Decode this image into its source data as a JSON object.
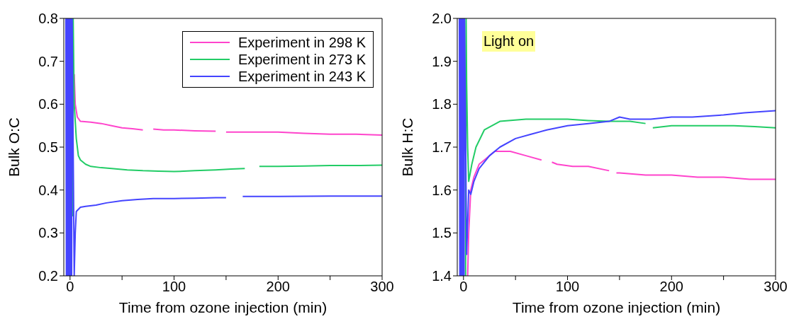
{
  "chart_data": [
    {
      "type": "line",
      "ylabel": "Bulk O:C",
      "xlabel": "Time from ozone injection (min)",
      "xlim": [
        -6,
        300
      ],
      "xticks": [
        0,
        {
          "value": 50,
          "label": null
        },
        100,
        {
          "value": 150,
          "label": null
        },
        200,
        {
          "value": 250,
          "label": null
        },
        300
      ],
      "ylim": [
        0.2,
        0.8
      ],
      "yticks": [
        0.2,
        0.3,
        0.4,
        0.5,
        0.6,
        0.7,
        0.8
      ],
      "legend": "top right",
      "marker": "none",
      "line_style": "solid",
      "series": [
        {
          "name": "Experiment in 298 K",
          "color": "#ff44cc",
          "x": [
            4,
            5,
            7,
            10,
            20,
            30,
            40,
            50,
            60,
            70,
            72,
            80,
            90,
            100,
            120,
            140,
            145,
            150,
            175,
            200,
            225,
            250,
            275,
            300
          ],
          "values": [
            0.67,
            0.6,
            0.57,
            0.56,
            0.558,
            0.555,
            0.55,
            0.545,
            0.543,
            0.54,
            null,
            0.542,
            0.54,
            0.54,
            0.538,
            0.537,
            null,
            0.535,
            0.535,
            0.535,
            0.532,
            0.53,
            0.53,
            0.528
          ]
        },
        {
          "name": "Experiment in 273 K",
          "color": "#22cc66",
          "x": [
            2,
            2.5,
            3,
            4,
            6,
            8,
            10,
            15,
            20,
            30,
            40,
            55,
            70,
            85,
            100,
            120,
            140,
            155,
            168,
            175,
            182,
            200,
            225,
            250,
            275,
            300
          ],
          "values": [
            0.8,
            0.34,
            0.8,
            0.6,
            0.52,
            0.48,
            0.47,
            0.46,
            0.455,
            0.452,
            0.45,
            0.447,
            0.445,
            0.444,
            0.443,
            0.445,
            0.447,
            0.449,
            0.45,
            null,
            0.455,
            0.455,
            0.456,
            0.457,
            0.457,
            0.458
          ]
        },
        {
          "name": "Experiment in 243 K",
          "color": "#4444ff",
          "x": [
            -4,
            -3.5,
            -3,
            -2.5,
            -2,
            -1.5,
            -1,
            -0.5,
            0,
            0.5,
            1,
            1.5,
            2,
            4,
            5,
            6,
            8,
            10,
            15,
            25,
            35,
            50,
            65,
            80,
            100,
            120,
            140,
            150,
            158,
            166,
            200,
            250,
            300
          ],
          "values": [
            0.8,
            0.2,
            0.8,
            0.2,
            0.8,
            0.2,
            0.8,
            0.2,
            0.8,
            0.2,
            0.8,
            0.2,
            0.8,
            0.2,
            0.3,
            0.35,
            0.355,
            0.36,
            0.362,
            0.365,
            0.37,
            0.375,
            0.378,
            0.38,
            0.38,
            0.381,
            0.382,
            0.382,
            null,
            0.385,
            0.385,
            0.386,
            0.386
          ]
        }
      ]
    },
    {
      "type": "line",
      "ylabel": "Bulk H:C",
      "xlabel": "Time from ozone injection (min)",
      "xlim": [
        -6,
        300
      ],
      "xticks": [
        0,
        {
          "value": 50,
          "label": null
        },
        100,
        {
          "value": 150,
          "label": null
        },
        200,
        {
          "value": 250,
          "label": null
        },
        300
      ],
      "ylim": [
        1.4,
        2.0
      ],
      "yticks": [
        1.4,
        1.5,
        1.6,
        1.7,
        1.8,
        1.9,
        {
          "value": 2,
          "label": "2.0"
        }
      ],
      "marker": "none",
      "line_style": "solid",
      "annotations": [
        "Light on"
      ],
      "series": [
        {
          "color": "#ff44cc",
          "x": [
            4,
            5,
            7,
            10,
            15,
            20,
            30,
            45,
            60,
            75,
            78,
            85,
            90,
            105,
            120,
            140,
            143,
            147,
            150,
            175,
            200,
            225,
            250,
            275,
            300
          ],
          "values": [
            1.4,
            1.5,
            1.6,
            1.63,
            1.66,
            1.67,
            1.69,
            1.69,
            1.68,
            1.67,
            null,
            1.665,
            1.66,
            1.655,
            1.655,
            1.645,
            null,
            1.64,
            1.64,
            1.635,
            1.635,
            1.63,
            1.63,
            1.625,
            1.625
          ]
        },
        {
          "color": "#22cc66",
          "x": [
            2,
            2.5,
            3,
            4,
            5,
            8,
            12,
            20,
            35,
            60,
            80,
            100,
            120,
            140,
            160,
            175,
            178,
            182,
            200,
            220,
            240,
            260,
            280,
            300
          ],
          "values": [
            1.4,
            2.0,
            1.85,
            1.7,
            1.62,
            1.66,
            1.7,
            1.74,
            1.76,
            1.765,
            1.765,
            1.765,
            1.762,
            1.76,
            1.76,
            1.755,
            null,
            1.745,
            1.75,
            1.75,
            1.75,
            1.75,
            1.748,
            1.745
          ]
        },
        {
          "color": "#4444ff",
          "x": [
            -4,
            -3.5,
            -3,
            -2.5,
            -2,
            -1.5,
            -1,
            -0.5,
            0,
            0.5,
            1,
            3,
            5,
            7,
            10,
            15,
            25,
            35,
            50,
            65,
            80,
            100,
            120,
            140,
            150,
            160,
            180,
            200,
            220,
            250,
            270,
            300
          ],
          "values": [
            2.0,
            1.4,
            2.0,
            1.4,
            2.0,
            1.4,
            2.0,
            1.4,
            2.0,
            1.4,
            2.0,
            1.45,
            1.6,
            1.59,
            1.62,
            1.65,
            1.68,
            1.7,
            1.72,
            1.73,
            1.74,
            1.75,
            1.755,
            1.76,
            1.77,
            1.765,
            1.765,
            1.77,
            1.77,
            1.775,
            1.78,
            1.785
          ]
        }
      ]
    }
  ]
}
